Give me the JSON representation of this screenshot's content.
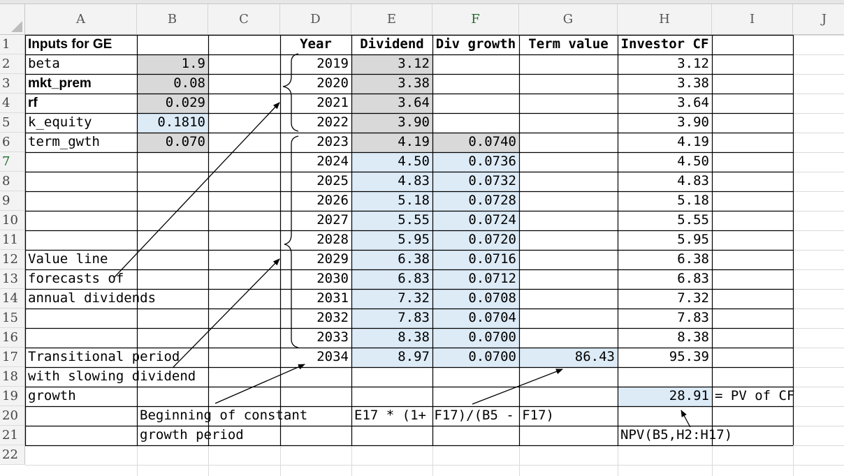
{
  "columns": [
    "A",
    "B",
    "C",
    "D",
    "E",
    "F",
    "G",
    "H",
    "I",
    "J"
  ],
  "selected_column": "F",
  "rows": [
    "1",
    "2",
    "3",
    "4",
    "5",
    "6",
    "7",
    "8",
    "9",
    "10",
    "11",
    "12",
    "13",
    "14",
    "15",
    "16",
    "17",
    "18",
    "19",
    "20",
    "21",
    "22"
  ],
  "selected_row": "7",
  "cells": [
    {
      "ref": "A1",
      "text": "Inputs for GE",
      "bold": true,
      "sans": true
    },
    {
      "ref": "A2",
      "text": "beta"
    },
    {
      "ref": "B2",
      "text": "1.9",
      "num": true,
      "fill": "gray"
    },
    {
      "ref": "A3",
      "text": "mkt_prem",
      "bold": true,
      "sans": true
    },
    {
      "ref": "B3",
      "text": "0.08",
      "num": true,
      "fill": "gray"
    },
    {
      "ref": "A4",
      "text": "rf",
      "bold": true,
      "sans": true
    },
    {
      "ref": "B4",
      "text": "0.029",
      "num": true,
      "fill": "gray"
    },
    {
      "ref": "A5",
      "text": "k_equity"
    },
    {
      "ref": "B5",
      "text": "0.1810",
      "num": true,
      "fill": "blue"
    },
    {
      "ref": "A6",
      "text": "term_gwth"
    },
    {
      "ref": "B6",
      "text": "0.070",
      "num": true,
      "fill": "gray"
    },
    {
      "ref": "D1",
      "text": "Year",
      "bold": true,
      "center": true
    },
    {
      "ref": "E1",
      "text": "Dividend",
      "bold": true,
      "center": true
    },
    {
      "ref": "F1",
      "text": "Div growth",
      "bold": true,
      "center": true
    },
    {
      "ref": "G1",
      "text": "Term value",
      "bold": true,
      "center": true
    },
    {
      "ref": "H1",
      "text": "Investor CF",
      "bold": true,
      "center": true
    },
    {
      "ref": "D2",
      "text": "2019",
      "num": true
    },
    {
      "ref": "D3",
      "text": "2020",
      "num": true
    },
    {
      "ref": "D4",
      "text": "2021",
      "num": true
    },
    {
      "ref": "D5",
      "text": "2022",
      "num": true
    },
    {
      "ref": "D6",
      "text": "2023",
      "num": true
    },
    {
      "ref": "D7",
      "text": "2024",
      "num": true
    },
    {
      "ref": "D8",
      "text": "2025",
      "num": true
    },
    {
      "ref": "D9",
      "text": "2026",
      "num": true
    },
    {
      "ref": "D10",
      "text": "2027",
      "num": true
    },
    {
      "ref": "D11",
      "text": "2028",
      "num": true
    },
    {
      "ref": "D12",
      "text": "2029",
      "num": true
    },
    {
      "ref": "D13",
      "text": "2030",
      "num": true
    },
    {
      "ref": "D14",
      "text": "2031",
      "num": true
    },
    {
      "ref": "D15",
      "text": "2032",
      "num": true
    },
    {
      "ref": "D16",
      "text": "2033",
      "num": true
    },
    {
      "ref": "D17",
      "text": "2034",
      "num": true
    },
    {
      "ref": "E2",
      "text": "3.12",
      "num": true,
      "fill": "gray"
    },
    {
      "ref": "E3",
      "text": "3.38",
      "num": true,
      "fill": "gray"
    },
    {
      "ref": "E4",
      "text": "3.64",
      "num": true,
      "fill": "gray"
    },
    {
      "ref": "E5",
      "text": "3.90",
      "num": true,
      "fill": "gray"
    },
    {
      "ref": "E6",
      "text": "4.19",
      "num": true,
      "fill": "gray"
    },
    {
      "ref": "E7",
      "text": "4.50",
      "num": true,
      "fill": "blue"
    },
    {
      "ref": "E8",
      "text": "4.83",
      "num": true,
      "fill": "blue"
    },
    {
      "ref": "E9",
      "text": "5.18",
      "num": true,
      "fill": "blue"
    },
    {
      "ref": "E10",
      "text": "5.55",
      "num": true,
      "fill": "blue"
    },
    {
      "ref": "E11",
      "text": "5.95",
      "num": true,
      "fill": "blue"
    },
    {
      "ref": "E12",
      "text": "6.38",
      "num": true,
      "fill": "blue"
    },
    {
      "ref": "E13",
      "text": "6.83",
      "num": true,
      "fill": "blue"
    },
    {
      "ref": "E14",
      "text": "7.32",
      "num": true,
      "fill": "blue"
    },
    {
      "ref": "E15",
      "text": "7.83",
      "num": true,
      "fill": "blue"
    },
    {
      "ref": "E16",
      "text": "8.38",
      "num": true,
      "fill": "blue"
    },
    {
      "ref": "E17",
      "text": "8.97",
      "num": true,
      "fill": "blue"
    },
    {
      "ref": "F6",
      "text": "0.0740",
      "num": true,
      "fill": "gray"
    },
    {
      "ref": "F7",
      "text": "0.0736",
      "num": true,
      "fill": "blue"
    },
    {
      "ref": "F8",
      "text": "0.0732",
      "num": true,
      "fill": "blue"
    },
    {
      "ref": "F9",
      "text": "0.0728",
      "num": true,
      "fill": "blue"
    },
    {
      "ref": "F10",
      "text": "0.0724",
      "num": true,
      "fill": "blue"
    },
    {
      "ref": "F11",
      "text": "0.0720",
      "num": true,
      "fill": "blue"
    },
    {
      "ref": "F12",
      "text": "0.0716",
      "num": true,
      "fill": "blue"
    },
    {
      "ref": "F13",
      "text": "0.0712",
      "num": true,
      "fill": "blue"
    },
    {
      "ref": "F14",
      "text": "0.0708",
      "num": true,
      "fill": "blue"
    },
    {
      "ref": "F15",
      "text": "0.0704",
      "num": true,
      "fill": "blue"
    },
    {
      "ref": "F16",
      "text": "0.0700",
      "num": true,
      "fill": "blue"
    },
    {
      "ref": "F17",
      "text": "0.0700",
      "num": true,
      "fill": "blue"
    },
    {
      "ref": "G17",
      "text": "86.43",
      "num": true,
      "fill": "blue"
    },
    {
      "ref": "H2",
      "text": "3.12",
      "num": true
    },
    {
      "ref": "H3",
      "text": "3.38",
      "num": true
    },
    {
      "ref": "H4",
      "text": "3.64",
      "num": true
    },
    {
      "ref": "H5",
      "text": "3.90",
      "num": true
    },
    {
      "ref": "H6",
      "text": "4.19",
      "num": true
    },
    {
      "ref": "H7",
      "text": "4.50",
      "num": true
    },
    {
      "ref": "H8",
      "text": "4.83",
      "num": true
    },
    {
      "ref": "H9",
      "text": "5.18",
      "num": true
    },
    {
      "ref": "H10",
      "text": "5.55",
      "num": true
    },
    {
      "ref": "H11",
      "text": "5.95",
      "num": true
    },
    {
      "ref": "H12",
      "text": "6.38",
      "num": true
    },
    {
      "ref": "H13",
      "text": "6.83",
      "num": true
    },
    {
      "ref": "H14",
      "text": "7.32",
      "num": true
    },
    {
      "ref": "H15",
      "text": "7.83",
      "num": true
    },
    {
      "ref": "H16",
      "text": "8.38",
      "num": true
    },
    {
      "ref": "H17",
      "text": "95.39",
      "num": true
    },
    {
      "ref": "H19",
      "text": "28.91",
      "num": true,
      "fill": "blue"
    },
    {
      "ref": "I19",
      "text": "= PV of CF"
    },
    {
      "ref": "A12",
      "text": "Value line"
    },
    {
      "ref": "A13",
      "text": "forecasts of"
    },
    {
      "ref": "A14",
      "text": "annual dividends"
    },
    {
      "ref": "A17",
      "text": "Transitional period"
    },
    {
      "ref": "A18",
      "text": "with slowing dividend"
    },
    {
      "ref": "A19",
      "text": "growth"
    },
    {
      "ref": "B20",
      "text": "Beginning of constant"
    },
    {
      "ref": "B21",
      "text": "growth period"
    },
    {
      "ref": "E20",
      "text": "E17 * (1+ F17)/(B5 - F17)"
    },
    {
      "ref": "H21",
      "text": "NPV(B5,H2:H17)"
    }
  ],
  "bordered_ranges": [
    {
      "from": "A1",
      "to": "I21"
    }
  ]
}
